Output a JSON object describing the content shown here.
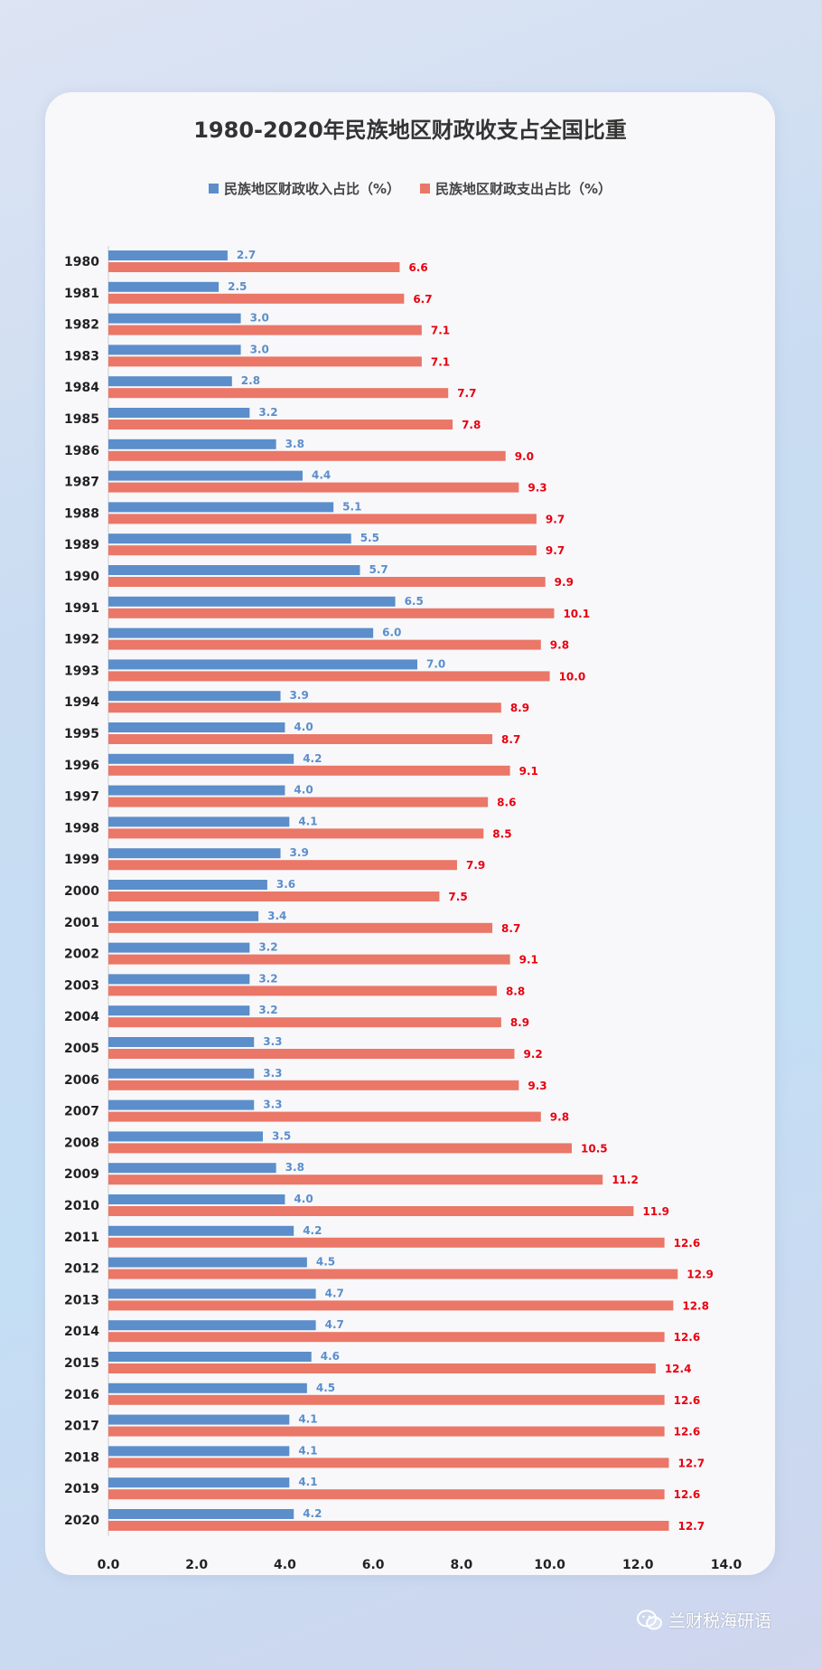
{
  "colors": {
    "income": "#5b8ecb",
    "expense": "#ea7767",
    "income_label": "#5b8ecb",
    "expense_label": "#e8000f"
  },
  "watermark": {
    "text": "兰财税海研语",
    "icon": "wechat-icon"
  },
  "chart_data": {
    "type": "bar",
    "orientation": "horizontal",
    "title": "1980-2020年民族地区财政收支占全国比重",
    "categories": [
      "1980",
      "1981",
      "1982",
      "1983",
      "1984",
      "1985",
      "1986",
      "1987",
      "1988",
      "1989",
      "1990",
      "1991",
      "1992",
      "1993",
      "1994",
      "1995",
      "1996",
      "1997",
      "1998",
      "1999",
      "2000",
      "2001",
      "2002",
      "2003",
      "2004",
      "2005",
      "2006",
      "2007",
      "2008",
      "2009",
      "2010",
      "2011",
      "2012",
      "2013",
      "2014",
      "2015",
      "2016",
      "2017",
      "2018",
      "2019",
      "2020"
    ],
    "series": [
      {
        "name": "民族地区财政收入占比（%）",
        "values": [
          2.7,
          2.5,
          3.0,
          3.0,
          2.8,
          3.2,
          3.8,
          4.4,
          5.1,
          5.5,
          5.7,
          6.5,
          6.0,
          7.0,
          3.9,
          4.0,
          4.2,
          4.0,
          4.1,
          3.9,
          3.6,
          3.4,
          3.2,
          3.2,
          3.2,
          3.3,
          3.3,
          3.3,
          3.5,
          3.8,
          4.0,
          4.2,
          4.5,
          4.7,
          4.7,
          4.6,
          4.5,
          4.1,
          4.1,
          4.1,
          4.2
        ]
      },
      {
        "name": "民族地区财政支出占比（%）",
        "values": [
          6.6,
          6.7,
          7.1,
          7.1,
          7.7,
          7.8,
          9.0,
          9.3,
          9.7,
          9.7,
          9.9,
          10.1,
          9.8,
          10.0,
          8.9,
          8.7,
          9.1,
          8.6,
          8.5,
          7.9,
          7.5,
          8.7,
          9.1,
          8.8,
          8.9,
          9.2,
          9.3,
          9.8,
          10.5,
          11.2,
          11.9,
          12.6,
          12.9,
          12.8,
          12.6,
          12.4,
          12.6,
          12.6,
          12.7,
          12.6,
          12.7
        ]
      }
    ],
    "xlim": [
      0,
      14
    ],
    "xticks": [
      "0.0",
      "2.0",
      "4.0",
      "6.0",
      "8.0",
      "10.0",
      "12.0",
      "14.0"
    ],
    "grid": false,
    "legend": "top"
  }
}
